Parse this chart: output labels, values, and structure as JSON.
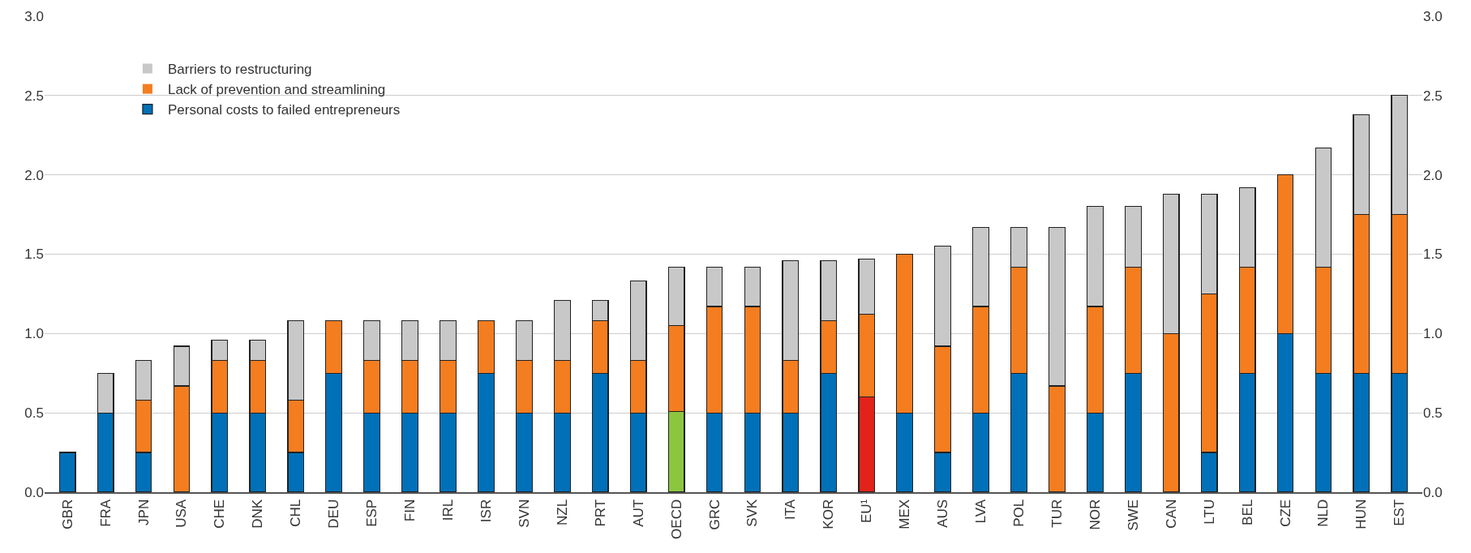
{
  "chart_data": {
    "type": "bar",
    "stacked": true,
    "categories": [
      "GBR",
      "FRA",
      "JPN",
      "USA",
      "CHE",
      "DNK",
      "CHL",
      "DEU",
      "ESP",
      "FIN",
      "IRL",
      "ISR",
      "SVN",
      "NZL",
      "PRT",
      "AUT",
      "OECD",
      "GRC",
      "SVK",
      "ITA",
      "KOR",
      "EU¹",
      "MEX",
      "AUS",
      "LVA",
      "POL",
      "TUR",
      "NOR",
      "SWE",
      "CAN",
      "LTU",
      "BEL",
      "CZE",
      "NLD",
      "HUN",
      "EST"
    ],
    "series": [
      {
        "name": "Personal costs to failed entrepreneurs",
        "color": "#0070b8",
        "colors": [
          "#0070b8",
          "#0070b8",
          "#0070b8",
          "#0070b8",
          "#0070b8",
          "#0070b8",
          "#0070b8",
          "#0070b8",
          "#0070b8",
          "#0070b8",
          "#0070b8",
          "#0070b8",
          "#0070b8",
          "#0070b8",
          "#0070b8",
          "#0070b8",
          "#8cc63f",
          "#0070b8",
          "#0070b8",
          "#0070b8",
          "#0070b8",
          "#e2231a",
          "#0070b8",
          "#0070b8",
          "#0070b8",
          "#0070b8",
          "#0070b8",
          "#0070b8",
          "#0070b8",
          "#0070b8",
          "#0070b8",
          "#0070b8",
          "#0070b8",
          "#0070b8",
          "#0070b8",
          "#0070b8"
        ],
        "values": [
          0.25,
          0.5,
          0.25,
          0,
          0.5,
          0.5,
          0.25,
          0.75,
          0.5,
          0.5,
          0.5,
          0.75,
          0.5,
          0.5,
          0.75,
          0.5,
          0.51,
          0.5,
          0.5,
          0.5,
          0.75,
          0.6,
          0.5,
          0.25,
          0.5,
          0.75,
          0,
          0.5,
          0.75,
          0,
          0.25,
          0.75,
          1.0,
          0.75,
          0.75,
          0.75
        ]
      },
      {
        "name": "Lack of prevention and streamlining",
        "color": "#f47d20",
        "values": [
          0,
          0,
          0.33,
          0.67,
          0.33,
          0.33,
          0.33,
          0.33,
          0.33,
          0.33,
          0.33,
          0.33,
          0.33,
          0.33,
          0.33,
          0.33,
          0.54,
          0.67,
          0.67,
          0.33,
          0.33,
          0.52,
          1.0,
          0.67,
          0.67,
          0.67,
          0.67,
          0.67,
          0.67,
          1.0,
          1.0,
          0.67,
          1.0,
          0.67,
          1.0,
          1.0
        ]
      },
      {
        "name": "Barriers to restructuring",
        "color": "#c8c8c8",
        "values": [
          0,
          0.25,
          0.25,
          0.25,
          0.13,
          0.13,
          0.5,
          0,
          0.25,
          0.25,
          0.25,
          0,
          0.25,
          0.38,
          0.13,
          0.5,
          0.37,
          0.25,
          0.25,
          0.63,
          0.38,
          0.35,
          0,
          0.63,
          0.5,
          0.25,
          1.0,
          0.63,
          0.38,
          0.88,
          0.63,
          0.5,
          0,
          0.75,
          0.63,
          0.75
        ]
      }
    ],
    "ylim": [
      0,
      3.0
    ],
    "yticks": [
      {
        "value": 0,
        "label": "0.0"
      },
      {
        "value": 0.5,
        "label": "0.5"
      },
      {
        "value": 1,
        "label": "1.0"
      },
      {
        "value": 1.5,
        "label": "1.5"
      },
      {
        "value": 2,
        "label": "2.0"
      },
      {
        "value": 2.5,
        "label": "2.5"
      },
      {
        "value": 3,
        "label": "3.0"
      }
    ],
    "y2lim": [
      0,
      3.0
    ],
    "y2ticks": [
      {
        "value": 0,
        "label": "0.0"
      },
      {
        "value": 0.5,
        "label": "0.5"
      },
      {
        "value": 1,
        "label": "1.0"
      },
      {
        "value": 1.5,
        "label": "1.5"
      },
      {
        "value": 2,
        "label": "2.0"
      },
      {
        "value": 2.5,
        "label": "2.5"
      },
      {
        "value": 3,
        "label": "3.0"
      }
    ],
    "grid": "y",
    "legend": "top left"
  }
}
